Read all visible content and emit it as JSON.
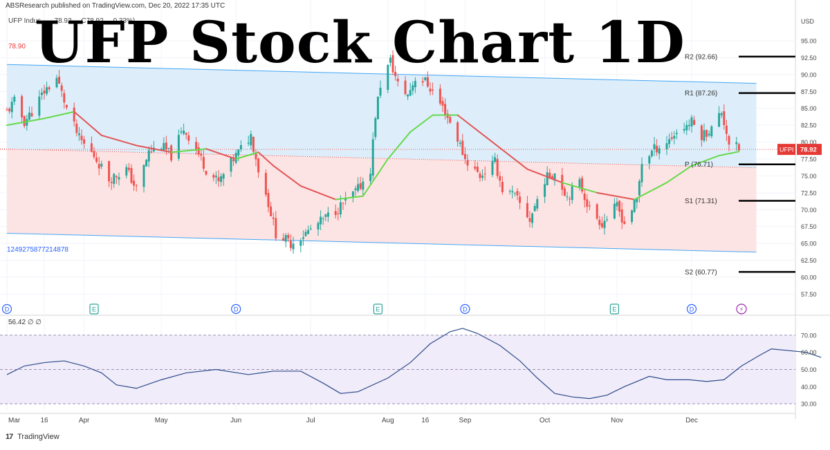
{
  "header": {
    "publisher": "ABSResearch published on TradingView.com, Dec 20, 2022 17:35 UTC",
    "symbol_line": "UFP Indus  ... ,  78.92  ... C78.92  ... 0.33%)",
    "overlay_title": "UFP Stock Chart 1D",
    "left_price_tag": "78.90",
    "drawing_id": "1249275877214878",
    "currency": "USD"
  },
  "footer": {
    "brand_mark": "17",
    "brand": "TradingView"
  },
  "colors": {
    "up": "#26a69a",
    "down": "#ef5350",
    "upper_channel_fill": "#ddeefa",
    "lower_channel_fill": "#fde4e4",
    "channel_line": "#42a5f5",
    "ma_above": "#66d94a",
    "ma_below": "#e25454",
    "rsi_line": "#2a4a88",
    "rsi_band": "#f1ecfa",
    "pivot_line": "#000000",
    "price_tag": "#e53935"
  },
  "chart_data": [
    {
      "type": "candlestick",
      "symbol": "UFPI",
      "last_price": 78.92,
      "last_price_label": "78.92",
      "ylabel": "USD",
      "ylim": [
        56,
        99
      ],
      "y_ticks": [
        "95.00",
        "92.50",
        "90.00",
        "87.50",
        "85.00",
        "82.50",
        "80.00",
        "77.50",
        "75.00",
        "72.50",
        "70.00",
        "67.50",
        "65.00",
        "62.50",
        "60.00",
        "57.50"
      ],
      "x_ticks": [
        "Mar",
        "16",
        "Apr",
        "May",
        "Jun",
        "Jul",
        "Aug",
        "16",
        "Sep",
        "Oct",
        "Nov",
        "Dec"
      ],
      "x_tick_dates": [
        "2022-03-01",
        "2022-03-16",
        "2022-04-01",
        "2022-05-02",
        "2022-06-01",
        "2022-07-01",
        "2022-08-01",
        "2022-08-16",
        "2022-09-01",
        "2022-10-03",
        "2022-11-01",
        "2022-12-01"
      ],
      "close_path": [
        [
          "2022-03-01",
          84.5
        ],
        [
          "2022-03-04",
          86.0
        ],
        [
          "2022-03-08",
          83.0
        ],
        [
          "2022-03-11",
          84.5
        ],
        [
          "2022-03-16",
          87.5
        ],
        [
          "2022-03-21",
          89.5
        ],
        [
          "2022-03-25",
          85.0
        ],
        [
          "2022-03-30",
          80.5
        ],
        [
          "2022-04-05",
          78.0
        ],
        [
          "2022-04-11",
          74.5
        ],
        [
          "2022-04-18",
          76.0
        ],
        [
          "2022-04-22",
          73.0
        ],
        [
          "2022-04-27",
          78.5
        ],
        [
          "2022-05-02",
          79.5
        ],
        [
          "2022-05-06",
          78.0
        ],
        [
          "2022-05-11",
          82.0
        ],
        [
          "2022-05-16",
          79.0
        ],
        [
          "2022-05-20",
          76.0
        ],
        [
          "2022-05-25",
          74.0
        ],
        [
          "2022-05-31",
          77.5
        ],
        [
          "2022-06-07",
          81.0
        ],
        [
          "2022-06-10",
          76.0
        ],
        [
          "2022-06-14",
          71.0
        ],
        [
          "2022-06-17",
          66.5
        ],
        [
          "2022-06-23",
          65.0
        ],
        [
          "2022-06-29",
          66.5
        ],
        [
          "2022-07-06",
          68.5
        ],
        [
          "2022-07-13",
          70.5
        ],
        [
          "2022-07-20",
          73.0
        ],
        [
          "2022-07-25",
          76.0
        ],
        [
          "2022-07-27",
          84.0
        ],
        [
          "2022-07-29",
          88.5
        ],
        [
          "2022-08-02",
          92.0
        ],
        [
          "2022-08-05",
          88.5
        ],
        [
          "2022-08-09",
          87.0
        ],
        [
          "2022-08-12",
          89.5
        ],
        [
          "2022-08-16",
          89.0
        ],
        [
          "2022-08-19",
          87.5
        ],
        [
          "2022-08-24",
          84.5
        ],
        [
          "2022-08-29",
          80.5
        ],
        [
          "2022-09-01",
          77.5
        ],
        [
          "2022-09-07",
          75.0
        ],
        [
          "2022-09-13",
          77.0
        ],
        [
          "2022-09-16",
          73.0
        ],
        [
          "2022-09-21",
          72.0
        ],
        [
          "2022-09-27",
          68.5
        ],
        [
          "2022-10-03",
          74.5
        ],
        [
          "2022-10-07",
          75.5
        ],
        [
          "2022-10-12",
          72.0
        ],
        [
          "2022-10-17",
          74.0
        ],
        [
          "2022-10-21",
          70.0
        ],
        [
          "2022-10-26",
          68.0
        ],
        [
          "2022-11-01",
          70.5
        ],
        [
          "2022-11-04",
          68.0
        ],
        [
          "2022-11-09",
          71.5
        ],
        [
          "2022-11-11",
          77.0
        ],
        [
          "2022-11-16",
          79.0
        ],
        [
          "2022-11-21",
          80.0
        ],
        [
          "2022-11-25",
          81.5
        ],
        [
          "2022-12-01",
          83.0
        ],
        [
          "2022-12-05",
          81.0
        ],
        [
          "2022-12-09",
          82.0
        ],
        [
          "2022-12-13",
          84.5
        ],
        [
          "2022-12-16",
          80.0
        ],
        [
          "2022-12-20",
          78.92
        ]
      ],
      "moving_average": [
        [
          "2022-03-01",
          82.5
        ],
        [
          "2022-03-16",
          83.5
        ],
        [
          "2022-03-28",
          84.5
        ],
        [
          "2022-04-08",
          81.0
        ],
        [
          "2022-04-22",
          79.5
        ],
        [
          "2022-05-06",
          78.5
        ],
        [
          "2022-05-20",
          79.0
        ],
        [
          "2022-06-01",
          77.5
        ],
        [
          "2022-06-10",
          78.5
        ],
        [
          "2022-06-16",
          76.5
        ],
        [
          "2022-06-27",
          73.5
        ],
        [
          "2022-07-11",
          71.5
        ],
        [
          "2022-07-22",
          72.0
        ],
        [
          "2022-08-01",
          77.5
        ],
        [
          "2022-08-10",
          81.5
        ],
        [
          "2022-08-19",
          84.0
        ],
        [
          "2022-08-29",
          84.0
        ],
        [
          "2022-09-12",
          80.0
        ],
        [
          "2022-09-26",
          76.0
        ],
        [
          "2022-10-10",
          74.0
        ],
        [
          "2022-10-24",
          72.5
        ],
        [
          "2022-11-08",
          71.5
        ],
        [
          "2022-11-21",
          74.0
        ],
        [
          "2022-12-01",
          76.5
        ],
        [
          "2022-12-12",
          78.0
        ],
        [
          "2022-12-20",
          78.6
        ]
      ],
      "channel": {
        "upper_line": [
          [
            "2022-03-01",
            91.5
          ],
          [
            "2022-12-27",
            88.7
          ]
        ],
        "middle_line": [
          [
            "2022-03-01",
            79.0
          ],
          [
            "2022-12-27",
            76.2
          ]
        ],
        "lower_line": [
          [
            "2022-03-01",
            66.5
          ],
          [
            "2022-12-27",
            63.7
          ]
        ]
      },
      "pivot_levels": [
        {
          "label": "R2 (92.66)",
          "value": 92.66
        },
        {
          "label": "R1 (87.26)",
          "value": 87.26
        },
        {
          "label": "P (76.71)",
          "value": 76.71
        },
        {
          "label": "S1 (71.31)",
          "value": 71.31
        },
        {
          "label": "S2 (60.77)",
          "value": 60.77
        }
      ],
      "events": [
        {
          "date": "2022-03-01",
          "kind": "D"
        },
        {
          "date": "2022-04-05",
          "kind": "E"
        },
        {
          "date": "2022-06-01",
          "kind": "D"
        },
        {
          "date": "2022-07-28",
          "kind": "E"
        },
        {
          "date": "2022-09-01",
          "kind": "D"
        },
        {
          "date": "2022-10-31",
          "kind": "E"
        },
        {
          "date": "2022-12-01",
          "kind": "D"
        },
        {
          "date": "2022-12-21",
          "kind": "⚡"
        }
      ]
    },
    {
      "type": "line",
      "name": "56.42",
      "label_extra": "∅  ∅",
      "ylim": [
        26,
        76
      ],
      "y_ticks": [
        "70.00",
        "60.00",
        "50.00",
        "40.00",
        "30.00"
      ],
      "band": [
        30,
        70
      ],
      "midline": 50,
      "series": [
        [
          "2022-03-01",
          47
        ],
        [
          "2022-03-08",
          52
        ],
        [
          "2022-03-16",
          54
        ],
        [
          "2022-03-24",
          55
        ],
        [
          "2022-04-01",
          52
        ],
        [
          "2022-04-08",
          48
        ],
        [
          "2022-04-14",
          41
        ],
        [
          "2022-04-22",
          39
        ],
        [
          "2022-05-02",
          44
        ],
        [
          "2022-05-12",
          48
        ],
        [
          "2022-05-24",
          50
        ],
        [
          "2022-06-06",
          47
        ],
        [
          "2022-06-16",
          49
        ],
        [
          "2022-06-27",
          49
        ],
        [
          "2022-07-06",
          42
        ],
        [
          "2022-07-13",
          36
        ],
        [
          "2022-07-20",
          37
        ],
        [
          "2022-08-01",
          45
        ],
        [
          "2022-08-10",
          54
        ],
        [
          "2022-08-18",
          65
        ],
        [
          "2022-08-26",
          72
        ],
        [
          "2022-08-31",
          74
        ],
        [
          "2022-09-06",
          71
        ],
        [
          "2022-09-15",
          64
        ],
        [
          "2022-09-23",
          55
        ],
        [
          "2022-09-30",
          45
        ],
        [
          "2022-10-07",
          36
        ],
        [
          "2022-10-14",
          34
        ],
        [
          "2022-10-21",
          33
        ],
        [
          "2022-10-28",
          35
        ],
        [
          "2022-11-04",
          40
        ],
        [
          "2022-11-14",
          46
        ],
        [
          "2022-11-21",
          44
        ],
        [
          "2022-11-30",
          44
        ],
        [
          "2022-12-07",
          43
        ],
        [
          "2022-12-14",
          44
        ],
        [
          "2022-12-21",
          52
        ],
        [
          "2022-12-28",
          58
        ],
        [
          "2023-01-02",
          62
        ],
        [
          "2023-01-09",
          61
        ],
        [
          "2023-01-16",
          60
        ],
        [
          "2023-01-22",
          57
        ]
      ]
    }
  ]
}
